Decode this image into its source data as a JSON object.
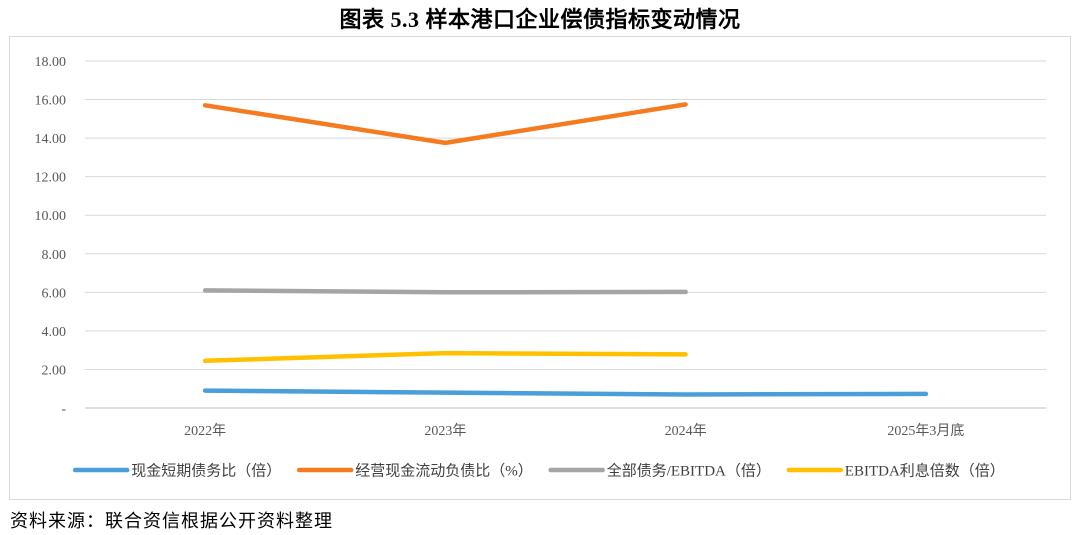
{
  "title": "图表 5.3   样本港口企业偿债指标变动情况",
  "source": "资料来源：联合资信根据公开资料整理",
  "chart_data": {
    "type": "line",
    "title": "图表 5.3   样本港口企业偿债指标变动情况",
    "categories": [
      "2022年",
      "2023年",
      "2024年",
      "2025年3月底"
    ],
    "y_tick_labels": [
      "-",
      "2.00",
      "4.00",
      "6.00",
      "8.00",
      "10.00",
      "12.00",
      "14.00",
      "16.00",
      "18.00"
    ],
    "ylim": [
      0,
      18
    ],
    "grid": true,
    "legend_position": "bottom",
    "series": [
      {
        "name": "现金短期债务比（倍）",
        "color": "#4a9fd8",
        "values": [
          0.9,
          0.8,
          0.7,
          0.73
        ]
      },
      {
        "name": "经营现金流动负债比（%）",
        "color": "#f47b20",
        "values": [
          15.7,
          13.75,
          15.75,
          null
        ]
      },
      {
        "name": "全部债务/EBITDA（倍）",
        "color": "#a5a5a5",
        "values": [
          6.1,
          6.0,
          6.02,
          null
        ]
      },
      {
        "name": "EBITDA利息倍数（倍）",
        "color": "#ffc000",
        "values": [
          2.45,
          2.85,
          2.78,
          null
        ]
      }
    ]
  }
}
